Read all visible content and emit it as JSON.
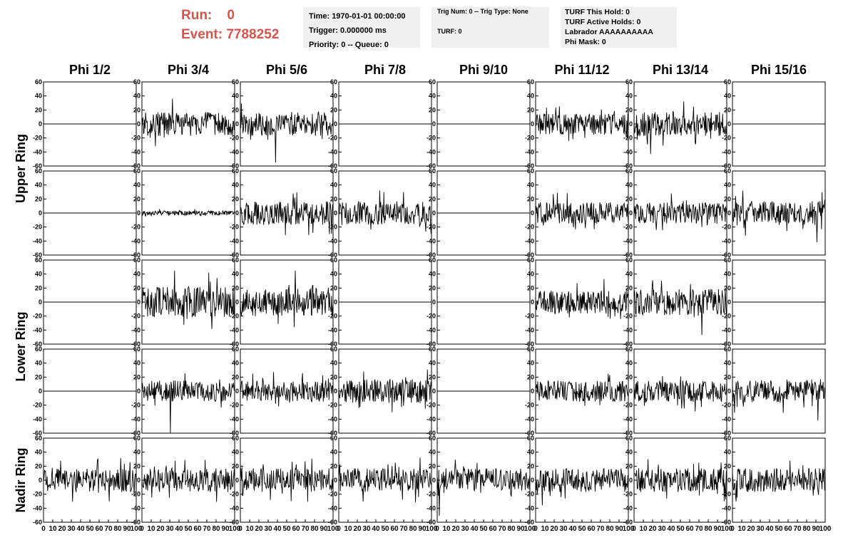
{
  "header": {
    "run_label": "Run:",
    "run_value": "0",
    "event_label": "Event:",
    "event_value": "7788252"
  },
  "info_time": {
    "time": "Time: 1970-01-01 00:00:00",
    "trigger": "Trigger: 0.000000 ms",
    "priority": "Priority: 0 -- Queue: 0"
  },
  "info_trig": {
    "trig": "Trig Num: 0 -- Trig Type: None",
    "turf": "TURF: 0"
  },
  "info_turf": {
    "this_hold": "TURF This Hold: 0",
    "active_holds": "TURF Active Holds: 0",
    "labrador": "Labrador AAAAAAAAAA",
    "phi_mask": "Phi Mask: 0"
  },
  "colors": {
    "title": "#d5544b",
    "box": "#f0f0f0",
    "trace": "#000000"
  },
  "chart_data": {
    "type": "line",
    "columns": [
      "Phi 1/2",
      "Phi 3/4",
      "Phi 5/6",
      "Phi 7/8",
      "Phi 9/10",
      "Phi 11/12",
      "Phi 13/14",
      "Phi 15/16"
    ],
    "ring_labels": [
      "Upper Ring",
      "Lower Ring",
      "Nadir Ring"
    ],
    "rows": 5,
    "xlim": [
      0,
      100
    ],
    "ylim": [
      -60,
      60
    ],
    "yticks": [
      60,
      40,
      20,
      0,
      -20,
      -40,
      -60
    ],
    "xticks": [
      0,
      10,
      20,
      30,
      40,
      50,
      60,
      70,
      80,
      90,
      100
    ],
    "grid": false,
    "panels": [
      [
        {
          "flat": true
        },
        {
          "amp": 10,
          "spike": 36,
          "spikeAt": 33
        },
        {
          "amp": 10,
          "spike": -55,
          "spikeAt": 38
        },
        {
          "flat": true
        },
        {
          "flat": true
        },
        {
          "amp": 9,
          "spike": 23,
          "spikeAt": 12
        },
        {
          "amp": 10,
          "spike": -43,
          "spikeAt": 18
        },
        {
          "flat": true
        }
      ],
      [
        {
          "flat": true
        },
        {
          "amp": 2,
          "spike": 4,
          "spikeAt": 40
        },
        {
          "amp": 10,
          "spike": 28,
          "spikeAt": 57
        },
        {
          "amp": 10,
          "spike": 30,
          "spikeAt": 70
        },
        {
          "flat": true
        },
        {
          "amp": 9,
          "spike": 27,
          "spikeAt": 19
        },
        {
          "amp": 9,
          "spike": 28,
          "spikeAt": 40
        },
        {
          "amp": 10,
          "spike": -42,
          "spikeAt": 91
        }
      ],
      [
        {
          "flat": true
        },
        {
          "amp": 13,
          "spike": 45,
          "spikeAt": 35
        },
        {
          "amp": 12,
          "spike": 45,
          "spikeAt": 59
        },
        {
          "flat": true
        },
        {
          "flat": true
        },
        {
          "amp": 10,
          "spike": 33,
          "spikeAt": 74
        },
        {
          "amp": 11,
          "spike": -47,
          "spikeAt": 73
        },
        {
          "flat": true
        }
      ],
      [
        {
          "flat": true
        },
        {
          "amp": 9,
          "spike": -60,
          "spikeAt": 31
        },
        {
          "amp": 9,
          "spike": 19,
          "spikeAt": 24
        },
        {
          "amp": 10,
          "spike": 28,
          "spikeAt": 27
        },
        {
          "flat": true
        },
        {
          "amp": 9,
          "spike": 23,
          "spikeAt": 80
        },
        {
          "amp": 9,
          "spike": 21,
          "spikeAt": 50
        },
        {
          "amp": 10,
          "spike": -42,
          "spikeAt": 92
        }
      ],
      [
        {
          "amp": 10,
          "spike": 29,
          "spikeAt": 58
        },
        {
          "amp": 10,
          "spike": 29,
          "spikeAt": 68
        },
        {
          "amp": 10,
          "spike": 27,
          "spikeAt": 70
        },
        {
          "amp": 10,
          "spike": 25,
          "spikeAt": 61
        },
        {
          "amp": 10,
          "spike": -51,
          "spikeAt": 2
        },
        {
          "amp": 10,
          "spike": -36,
          "spikeAt": 7
        },
        {
          "amp": 10,
          "spike": 30,
          "spikeAt": 15
        },
        {
          "amp": 10,
          "spike": 28,
          "spikeAt": 62
        }
      ]
    ]
  }
}
